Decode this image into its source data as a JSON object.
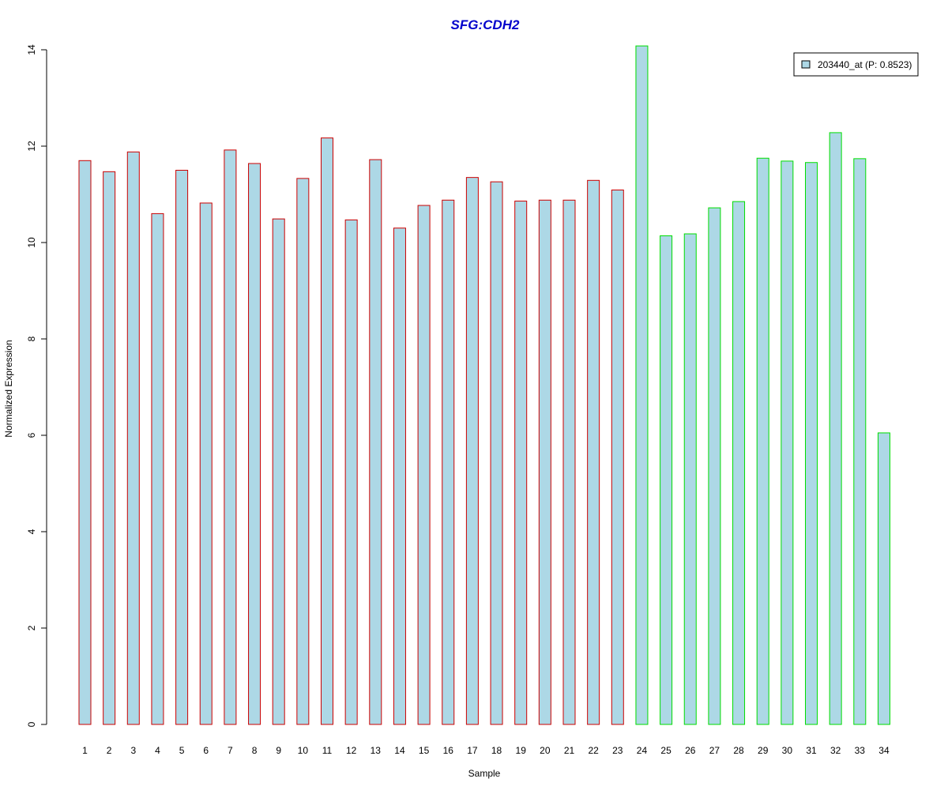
{
  "chart_data": {
    "type": "bar",
    "title": "SFG:CDH2",
    "xlabel": "Sample",
    "ylabel": "Normalized Expression",
    "ylim": [
      0,
      14
    ],
    "yticks": [
      0,
      2,
      4,
      6,
      8,
      10,
      12,
      14
    ],
    "categories": [
      "1",
      "2",
      "3",
      "4",
      "5",
      "6",
      "7",
      "8",
      "9",
      "10",
      "11",
      "12",
      "13",
      "14",
      "15",
      "16",
      "17",
      "18",
      "19",
      "20",
      "21",
      "22",
      "23",
      "24",
      "25",
      "26",
      "27",
      "28",
      "29",
      "30",
      "31",
      "32",
      "33",
      "34"
    ],
    "values": [
      11.7,
      11.47,
      11.88,
      10.6,
      11.5,
      10.82,
      11.92,
      11.64,
      10.49,
      11.33,
      12.17,
      10.47,
      11.72,
      10.3,
      10.77,
      10.88,
      11.35,
      11.26,
      10.86,
      10.88,
      10.88,
      11.29,
      11.09,
      14.08,
      10.14,
      10.18,
      10.72,
      10.85,
      11.75,
      11.69,
      11.66,
      12.28,
      11.74,
      6.05
    ],
    "group_index": [
      0,
      0,
      0,
      0,
      0,
      0,
      0,
      0,
      0,
      0,
      0,
      0,
      0,
      0,
      0,
      0,
      0,
      0,
      0,
      0,
      0,
      0,
      0,
      1,
      1,
      1,
      1,
      1,
      1,
      1,
      1,
      1,
      1,
      1
    ],
    "group_border_colors": [
      "#cc0000",
      "#00dd00"
    ],
    "bar_fill": "#add8e6",
    "title_color": "#0000cc",
    "legend": {
      "position": "top-right",
      "label": "203440_at (P: 0.8523)"
    }
  }
}
